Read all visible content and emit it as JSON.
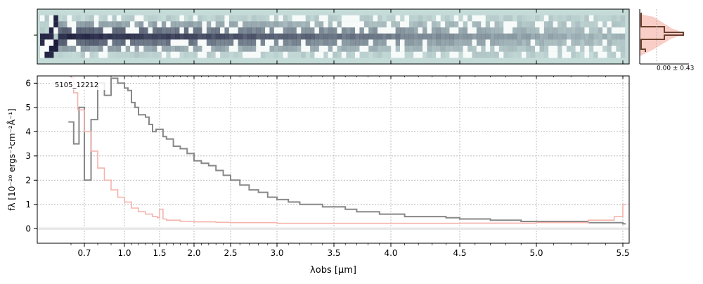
{
  "chart_data": [
    {
      "type": "heatmap",
      "panel": "2d-spectrum",
      "description_colormap": "bone_r",
      "colors": {
        "background": "#c4dbd8",
        "dark": "#1a1a3a",
        "light": "#ffffff"
      },
      "x": "shared with spectrum panel"
    },
    {
      "type": "line",
      "panel": "spatial-profile",
      "annotation": "0.00 ± 0.43",
      "colors": {
        "profile": "#6b4030",
        "fill": "#f7c2b8"
      }
    },
    {
      "type": "line",
      "panel": "1d-spectrum",
      "object_label": "5105_12212",
      "xlabel": "λobs [μm]",
      "ylabel": "fλ [10⁻²⁰ ergs⁻¹cm⁻²Å⁻¹]",
      "x_scale": "nonlinear (compressed at long wavelength)",
      "xlim": [
        0.55,
        5.52
      ],
      "ylim": [
        -0.6,
        6.3
      ],
      "xtick_labels": [
        "0.7",
        "1.0",
        "1.5",
        "2.0",
        "2.5",
        "3.0",
        "3.5",
        "4.0",
        "4.5",
        "5.0",
        "5.5"
      ],
      "xtick_values": [
        0.7,
        1.0,
        1.5,
        2.0,
        2.5,
        3.0,
        3.5,
        4.0,
        4.5,
        5.0,
        5.5
      ],
      "ytick_labels": [
        "0",
        "1",
        "2",
        "3",
        "4",
        "5",
        "6"
      ],
      "ytick_values": [
        0,
        1,
        2,
        3,
        4,
        5,
        6
      ],
      "grid": true,
      "series": [
        {
          "role": "flux",
          "color": "#888888",
          "x": [
            0.58,
            0.62,
            0.66,
            0.7,
            0.75,
            0.8,
            0.85,
            0.9,
            0.95,
            1.0,
            1.05,
            1.1,
            1.15,
            1.2,
            1.25,
            1.3,
            1.35,
            1.4,
            1.45,
            1.5,
            1.55,
            1.6,
            1.7,
            1.8,
            1.9,
            2.0,
            2.1,
            2.2,
            2.3,
            2.4,
            2.5,
            2.6,
            2.7,
            2.8,
            2.9,
            3.0,
            3.1,
            3.2,
            3.3,
            3.4,
            3.5,
            3.6,
            3.7,
            3.8,
            3.9,
            4.0,
            4.1,
            4.2,
            4.3,
            4.4,
            4.5,
            4.6,
            4.7,
            4.8,
            4.9,
            5.0,
            5.1,
            5.2,
            5.3,
            5.4,
            5.5
          ],
          "y": [
            4.4,
            3.5,
            5.0,
            2.0,
            4.5,
            6.0,
            5.5,
            6.2,
            6.0,
            5.8,
            5.7,
            5.2,
            5.0,
            4.7,
            4.7,
            4.6,
            4.3,
            4.0,
            4.1,
            4.1,
            3.8,
            3.7,
            3.4,
            3.3,
            3.1,
            2.8,
            2.7,
            2.6,
            2.4,
            2.2,
            2.0,
            1.8,
            1.6,
            1.5,
            1.3,
            1.2,
            1.1,
            1.0,
            1.0,
            0.9,
            0.9,
            0.8,
            0.7,
            0.7,
            0.6,
            0.6,
            0.5,
            0.5,
            0.5,
            0.45,
            0.4,
            0.4,
            0.35,
            0.35,
            0.3,
            0.3,
            0.3,
            0.3,
            0.25,
            0.25,
            0.2
          ]
        },
        {
          "role": "model",
          "color": "#f4b4ac",
          "x": [
            0.6,
            0.62,
            0.65,
            0.7,
            0.75,
            0.8,
            0.85,
            0.9,
            0.95,
            1.0,
            1.1,
            1.2,
            1.3,
            1.4,
            1.47,
            1.5,
            1.55,
            1.6,
            1.8,
            2.0,
            2.3,
            2.5,
            3.0,
            3.5,
            4.0,
            4.5,
            5.0,
            5.3,
            5.45,
            5.5
          ],
          "y": [
            6.2,
            5.6,
            4.9,
            4.0,
            3.2,
            2.5,
            2.0,
            1.6,
            1.3,
            1.1,
            0.85,
            0.7,
            0.6,
            0.5,
            0.45,
            0.8,
            0.4,
            0.35,
            0.3,
            0.28,
            0.26,
            0.25,
            0.22,
            0.22,
            0.22,
            0.23,
            0.25,
            0.35,
            0.5,
            1.0
          ]
        }
      ]
    }
  ]
}
